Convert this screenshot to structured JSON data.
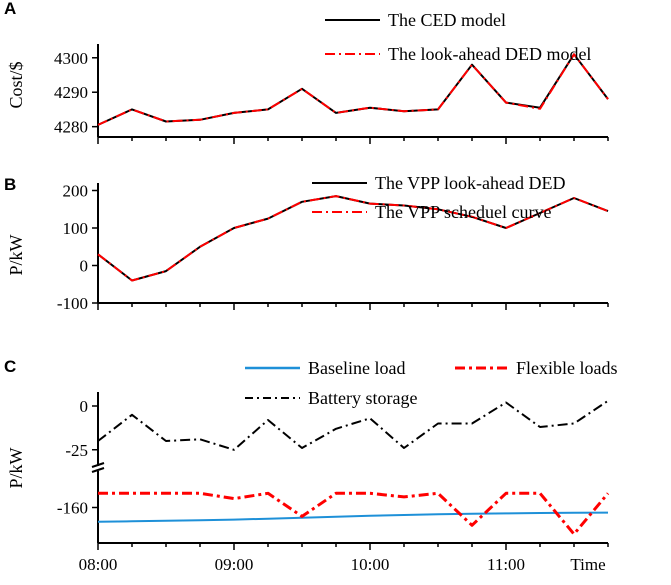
{
  "panels": [
    {
      "letter": "A",
      "ylabel": "Cost/$",
      "ylim": [
        4277,
        4304
      ],
      "yticks": [
        4280,
        4290,
        4300
      ],
      "show_xtick_labels": false,
      "series": [
        {
          "name": "The CED model",
          "color": "#000000",
          "dash": "solid",
          "values": [
            4280.5,
            4285,
            4281.5,
            4282,
            4284,
            4285,
            4291,
            4284,
            4285.5,
            4284.5,
            4285,
            4298,
            4287,
            4285.5,
            4301,
            4288
          ]
        },
        {
          "name": "The look-ahead DED model",
          "color": "#ff0000",
          "dash": "dashdot",
          "values": [
            4280.5,
            4285,
            4281.5,
            4282,
            4284,
            4285,
            4291,
            4284,
            4285.5,
            4284.5,
            4285,
            4298,
            4287,
            4285.2,
            4301,
            4288
          ]
        }
      ]
    },
    {
      "letter": "B",
      "ylabel": "P/kW",
      "ylim": [
        -100,
        220
      ],
      "yticks": [
        -100,
        0,
        100,
        200
      ],
      "show_xtick_labels": false,
      "series": [
        {
          "name": "The VPP look-ahead DED",
          "color": "#000000",
          "dash": "solid",
          "values": [
            30,
            -40,
            -15,
            50,
            100,
            125,
            170,
            185,
            165,
            160,
            150,
            130,
            100,
            140,
            180,
            145
          ]
        },
        {
          "name": "The VPP scheduel curve",
          "color": "#ff0000",
          "dash": "dashdot",
          "values": [
            30,
            -40,
            -15,
            50,
            100,
            125,
            170,
            185,
            165,
            160,
            150,
            130,
            100,
            140,
            180,
            145
          ]
        }
      ]
    },
    {
      "letter": "C",
      "ylabel": "P/kW",
      "broken_axis": true,
      "upper_ylim": [
        -32,
        8
      ],
      "lower_ylim": [
        -180,
        -140
      ],
      "yticks": [
        0,
        -25,
        -160
      ],
      "show_xtick_labels": true,
      "series": [
        {
          "name": "Baseline load",
          "color": "#1e90d8",
          "dash": "solid",
          "segment": "lower",
          "values": [
            -168,
            -167.8,
            -167.5,
            -167.2,
            -166.8,
            -166.3,
            -165.8,
            -165.2,
            -164.7,
            -164.2,
            -163.8,
            -163.5,
            -163.3,
            -163.1,
            -163,
            -162.9
          ]
        },
        {
          "name": "Flexible loads",
          "color": "#ff0000",
          "dash": "dashdotheavy",
          "segment": "lower",
          "values": [
            -152,
            -152,
            -152,
            -152,
            -155,
            -152,
            -165,
            -152,
            -152,
            -154,
            -152,
            -170,
            -152,
            -152,
            -175,
            -152
          ]
        },
        {
          "name": "Battery storage",
          "color": "#000000",
          "dash": "dashdot",
          "segment": "upper",
          "values": [
            -20,
            -5,
            -20,
            -19,
            -25,
            -8,
            -24,
            -13,
            -7,
            -24,
            -10,
            -10,
            2,
            -12,
            -10,
            3
          ]
        }
      ]
    }
  ],
  "x_tick_labels": [
    "08:00",
    "09:00",
    "10:00",
    "11:00"
  ],
  "x_time_label": "Time",
  "chart_data": [
    {
      "type": "line",
      "title": "A",
      "xlabel": "",
      "ylabel": "Cost/$",
      "x": [
        "08:00",
        "08:15",
        "08:30",
        "08:45",
        "09:00",
        "09:15",
        "09:30",
        "09:45",
        "10:00",
        "10:15",
        "10:30",
        "10:45",
        "11:00",
        "11:15",
        "11:30",
        "11:45"
      ],
      "ylim": [
        4277,
        4304
      ],
      "series": [
        {
          "name": "The CED model",
          "values": [
            4280.5,
            4285,
            4281.5,
            4282,
            4284,
            4285,
            4291,
            4284,
            4285.5,
            4284.5,
            4285,
            4298,
            4287,
            4285.5,
            4301,
            4288
          ]
        },
        {
          "name": "The look-ahead DED model",
          "values": [
            4280.5,
            4285,
            4281.5,
            4282,
            4284,
            4285,
            4291,
            4284,
            4285.5,
            4284.5,
            4285,
            4298,
            4287,
            4285.2,
            4301,
            4288
          ]
        }
      ]
    },
    {
      "type": "line",
      "title": "B",
      "xlabel": "",
      "ylabel": "P/kW",
      "x": [
        "08:00",
        "08:15",
        "08:30",
        "08:45",
        "09:00",
        "09:15",
        "09:30",
        "09:45",
        "10:00",
        "10:15",
        "10:30",
        "10:45",
        "11:00",
        "11:15",
        "11:30",
        "11:45"
      ],
      "ylim": [
        -100,
        220
      ],
      "series": [
        {
          "name": "The VPP look-ahead DED",
          "values": [
            30,
            -40,
            -15,
            50,
            100,
            125,
            170,
            185,
            165,
            160,
            150,
            130,
            100,
            140,
            180,
            145
          ]
        },
        {
          "name": "The VPP scheduel curve",
          "values": [
            30,
            -40,
            -15,
            50,
            100,
            125,
            170,
            185,
            165,
            160,
            150,
            130,
            100,
            140,
            180,
            145
          ]
        }
      ]
    },
    {
      "type": "line",
      "title": "C",
      "xlabel": "Time",
      "ylabel": "P/kW",
      "x": [
        "08:00",
        "08:15",
        "08:30",
        "08:45",
        "09:00",
        "09:15",
        "09:30",
        "09:45",
        "10:00",
        "10:15",
        "10:30",
        "10:45",
        "11:00",
        "11:15",
        "11:30",
        "11:45"
      ],
      "ylim": [
        -180,
        8
      ],
      "series": [
        {
          "name": "Baseline load",
          "values": [
            -168,
            -167.8,
            -167.5,
            -167.2,
            -166.8,
            -166.3,
            -165.8,
            -165.2,
            -164.7,
            -164.2,
            -163.8,
            -163.5,
            -163.3,
            -163.1,
            -163,
            -162.9
          ]
        },
        {
          "name": "Flexible loads",
          "values": [
            -152,
            -152,
            -152,
            -152,
            -155,
            -152,
            -165,
            -152,
            -152,
            -154,
            -152,
            -170,
            -152,
            -152,
            -175,
            -152
          ]
        },
        {
          "name": "Battery storage",
          "values": [
            -20,
            -5,
            -20,
            -19,
            -25,
            -8,
            -24,
            -13,
            -7,
            -24,
            -10,
            -10,
            2,
            -12,
            -10,
            3
          ]
        }
      ]
    }
  ]
}
